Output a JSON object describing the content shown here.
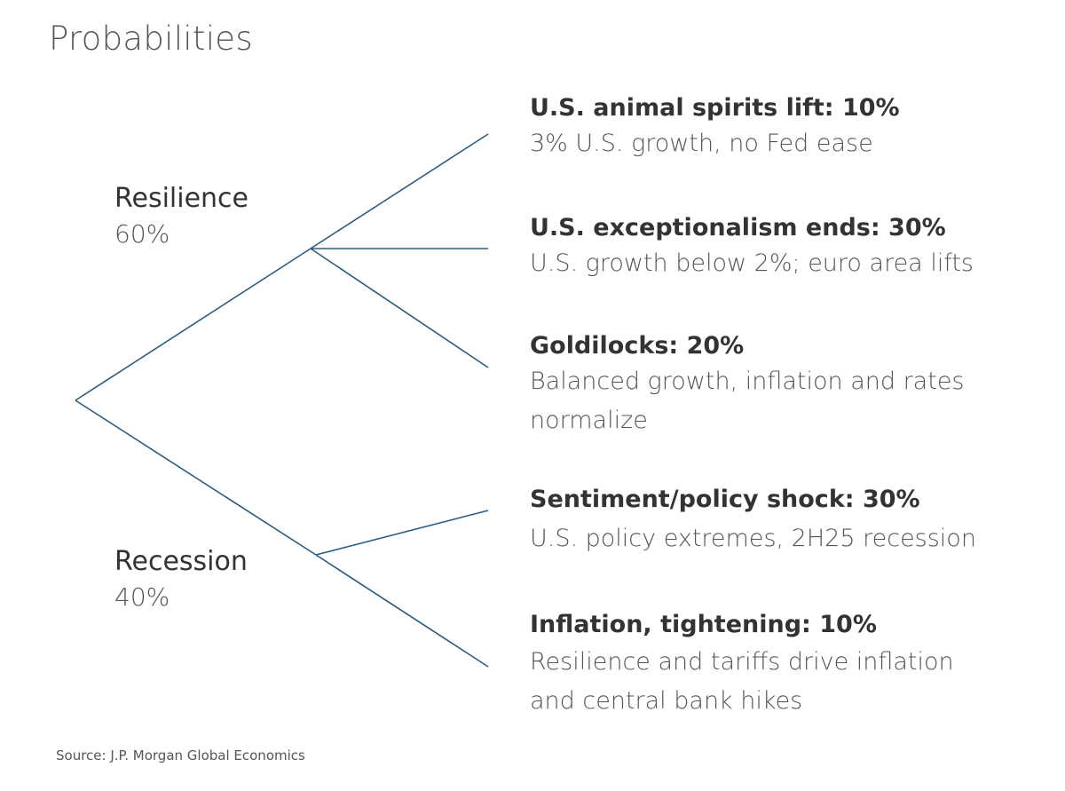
{
  "title": "Probabilities",
  "branches": [
    {
      "name": "Resilience",
      "probability": "60%"
    },
    {
      "name": "Recession",
      "probability": "40%"
    }
  ],
  "scenarios": [
    {
      "title": "U.S. animal spirits lift: 10%",
      "description": "3% U.S. growth, no Fed ease"
    },
    {
      "title": "U.S. exceptionalism ends: 30%",
      "description": "U.S. growth below 2%; euro area lifts"
    },
    {
      "title": "Goldilocks: 20%",
      "description": "Balanced growth, inflation and rates normalize"
    },
    {
      "title": "Sentiment/policy shock: 30%",
      "description": "U.S. policy extremes, 2H25 recession"
    },
    {
      "title": "Inflation, tightening: 10%",
      "description": "Resilience and tariffs drive inflation and central bank hikes"
    }
  ],
  "source": "Source: J.P. Morgan Global Economics",
  "colors": {
    "line": "#2b5d82"
  }
}
